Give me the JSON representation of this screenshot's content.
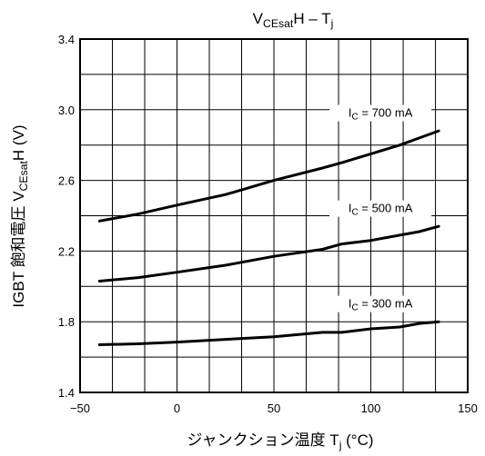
{
  "chart_data": {
    "type": "line",
    "title": {
      "main": "V",
      "sub": "CEsat",
      "rest": "H – T",
      "sub2": "j"
    },
    "xlabel": {
      "main": "ジャンクション温度 T",
      "sub": "j",
      "rest": " (°C)"
    },
    "ylabel": {
      "main": "IGBT 飽和電圧 V",
      "sub": "CEsat",
      "rest": "H (V)"
    },
    "xlim": [
      -50,
      150
    ],
    "ylim": [
      1.4,
      3.4
    ],
    "x_ticks": [
      -50,
      0,
      50,
      100,
      150
    ],
    "x_tick_labels": [
      "−50",
      "0",
      "50",
      "100",
      "150"
    ],
    "y_ticks": [
      1.4,
      1.8,
      2.2,
      2.6,
      3.0,
      3.4
    ],
    "y_tick_labels": [
      "1.4",
      "1.8",
      "2.2",
      "2.6",
      "3.0",
      "3.4"
    ],
    "x_grid_step": 16.67,
    "y_grid_step": 0.2,
    "grid": true,
    "series": [
      {
        "name": {
          "pre": "I",
          "sub": "C",
          "post": " = 700 mA"
        },
        "x": [
          -40,
          -20,
          0,
          25,
          50,
          75,
          85,
          100,
          115,
          125,
          135
        ],
        "y": [
          2.37,
          2.41,
          2.46,
          2.52,
          2.6,
          2.67,
          2.7,
          2.75,
          2.8,
          2.84,
          2.88
        ]
      },
      {
        "name": {
          "pre": "I",
          "sub": "C",
          "post": " = 500 mA"
        },
        "x": [
          -40,
          -20,
          0,
          25,
          50,
          75,
          85,
          100,
          115,
          125,
          135
        ],
        "y": [
          2.03,
          2.05,
          2.08,
          2.12,
          2.17,
          2.21,
          2.24,
          2.26,
          2.29,
          2.31,
          2.34
        ]
      },
      {
        "name": {
          "pre": "I",
          "sub": "C",
          "post": " = 300 mA"
        },
        "x": [
          -40,
          -20,
          0,
          25,
          50,
          75,
          85,
          100,
          115,
          125,
          135
        ],
        "y": [
          1.67,
          1.675,
          1.685,
          1.7,
          1.715,
          1.74,
          1.74,
          1.76,
          1.77,
          1.79,
          1.8
        ]
      }
    ]
  }
}
